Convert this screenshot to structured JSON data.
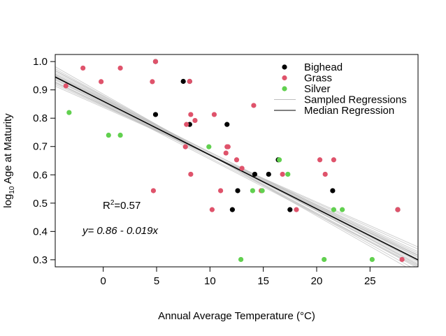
{
  "chart_data": {
    "type": "scatter",
    "xlabel": "Annual Average Temperature (°C)",
    "ylabel_base": "log",
    "ylabel_sub": "10",
    "ylabel_rest": " Age at Maturity",
    "xlim": [
      -4.5,
      29.5
    ],
    "ylim": [
      0.275,
      1.025
    ],
    "xticks": [
      0,
      5,
      10,
      15,
      20,
      25
    ],
    "yticks": [
      0.3,
      0.4,
      0.5,
      0.6,
      0.7,
      0.8,
      0.9,
      1.0
    ],
    "ytick_labels": [
      "0.3",
      "0.4",
      "0.5",
      "0.6",
      "0.7",
      "0.8",
      "0.9",
      "1.0"
    ],
    "grid": false,
    "legend_position": "top-right",
    "legend": [
      {
        "label": "Bighead",
        "kind": "point",
        "color": "#000000"
      },
      {
        "label": "Grass",
        "kind": "point",
        "color": "#DF536B"
      },
      {
        "label": "Silver",
        "kind": "point",
        "color": "#61D04F"
      },
      {
        "label": "Sampled Regressions",
        "kind": "line",
        "color": "#BEBEBE"
      },
      {
        "label": "Median Regression",
        "kind": "line",
        "color": "#000000"
      }
    ],
    "annotations": {
      "r2_base": "R",
      "r2_sup": "2",
      "r2_rest": "=0.57",
      "equation": "y= 0.86 - 0.019x"
    },
    "median_regression": {
      "intercept": 0.86,
      "slope": -0.019
    },
    "sampled_regressions": [
      {
        "intercept": 0.885,
        "slope": -0.0215
      },
      {
        "intercept": 0.88,
        "slope": -0.021
      },
      {
        "intercept": 0.875,
        "slope": -0.0205
      },
      {
        "intercept": 0.872,
        "slope": -0.02
      },
      {
        "intercept": 0.868,
        "slope": -0.0197
      },
      {
        "intercept": 0.865,
        "slope": -0.0194
      },
      {
        "intercept": 0.862,
        "slope": -0.0192
      },
      {
        "intercept": 0.858,
        "slope": -0.0188
      },
      {
        "intercept": 0.855,
        "slope": -0.0185
      },
      {
        "intercept": 0.852,
        "slope": -0.0182
      },
      {
        "intercept": 0.848,
        "slope": -0.0178
      },
      {
        "intercept": 0.845,
        "slope": -0.0175
      },
      {
        "intercept": 0.842,
        "slope": -0.0171
      },
      {
        "intercept": 0.838,
        "slope": -0.0167
      },
      {
        "intercept": 0.87,
        "slope": -0.019
      },
      {
        "intercept": 0.85,
        "slope": -0.0195
      },
      {
        "intercept": 0.866,
        "slope": -0.0186
      },
      {
        "intercept": 0.856,
        "slope": -0.0196
      },
      {
        "intercept": 0.878,
        "slope": -0.0202
      },
      {
        "intercept": 0.846,
        "slope": -0.018
      }
    ],
    "series": [
      {
        "name": "Bighead",
        "color": "#000000",
        "points": [
          [
            4.9,
            1.0
          ],
          [
            4.9,
            0.813
          ],
          [
            7.5,
            0.93
          ],
          [
            8.1,
            0.93
          ],
          [
            8.1,
            0.778
          ],
          [
            11.6,
            0.778
          ],
          [
            12.1,
            0.477
          ],
          [
            12.6,
            0.544
          ],
          [
            14.2,
            0.602
          ],
          [
            15.5,
            0.602
          ],
          [
            16.4,
            0.653
          ],
          [
            17.5,
            0.477
          ],
          [
            21.5,
            0.544
          ],
          [
            27.6,
            0.477
          ]
        ]
      },
      {
        "name": "Grass",
        "color": "#DF536B",
        "points": [
          [
            -3.5,
            0.914
          ],
          [
            -1.9,
            0.977
          ],
          [
            -0.2,
            0.929
          ],
          [
            1.6,
            0.977
          ],
          [
            4.6,
            0.929
          ],
          [
            4.7,
            0.544
          ],
          [
            4.9,
            1.0
          ],
          [
            7.7,
            0.699
          ],
          [
            7.8,
            0.778
          ],
          [
            8.1,
            0.93
          ],
          [
            8.2,
            0.813
          ],
          [
            8.2,
            0.602
          ],
          [
            8.6,
            0.792
          ],
          [
            10.2,
            0.477
          ],
          [
            10.4,
            0.813
          ],
          [
            11.0,
            0.544
          ],
          [
            11.5,
            0.677
          ],
          [
            11.6,
            0.699
          ],
          [
            11.7,
            0.699
          ],
          [
            12.5,
            0.653
          ],
          [
            13.0,
            0.623
          ],
          [
            14.1,
            0.845
          ],
          [
            14.8,
            0.544
          ],
          [
            16.8,
            0.602
          ],
          [
            18.1,
            0.477
          ],
          [
            20.3,
            0.653
          ],
          [
            20.8,
            0.602
          ],
          [
            21.6,
            0.653
          ],
          [
            27.6,
            0.477
          ],
          [
            28.0,
            0.301
          ]
        ]
      },
      {
        "name": "Silver",
        "color": "#61D04F",
        "points": [
          [
            -3.2,
            0.82
          ],
          [
            0.5,
            0.74
          ],
          [
            1.6,
            0.74
          ],
          [
            9.9,
            0.699
          ],
          [
            12.9,
            0.301
          ],
          [
            14.0,
            0.544
          ],
          [
            14.9,
            0.544
          ],
          [
            16.5,
            0.653
          ],
          [
            17.3,
            0.602
          ],
          [
            20.7,
            0.301
          ],
          [
            21.6,
            0.477
          ],
          [
            22.4,
            0.477
          ],
          [
            25.2,
            0.301
          ]
        ]
      }
    ]
  }
}
